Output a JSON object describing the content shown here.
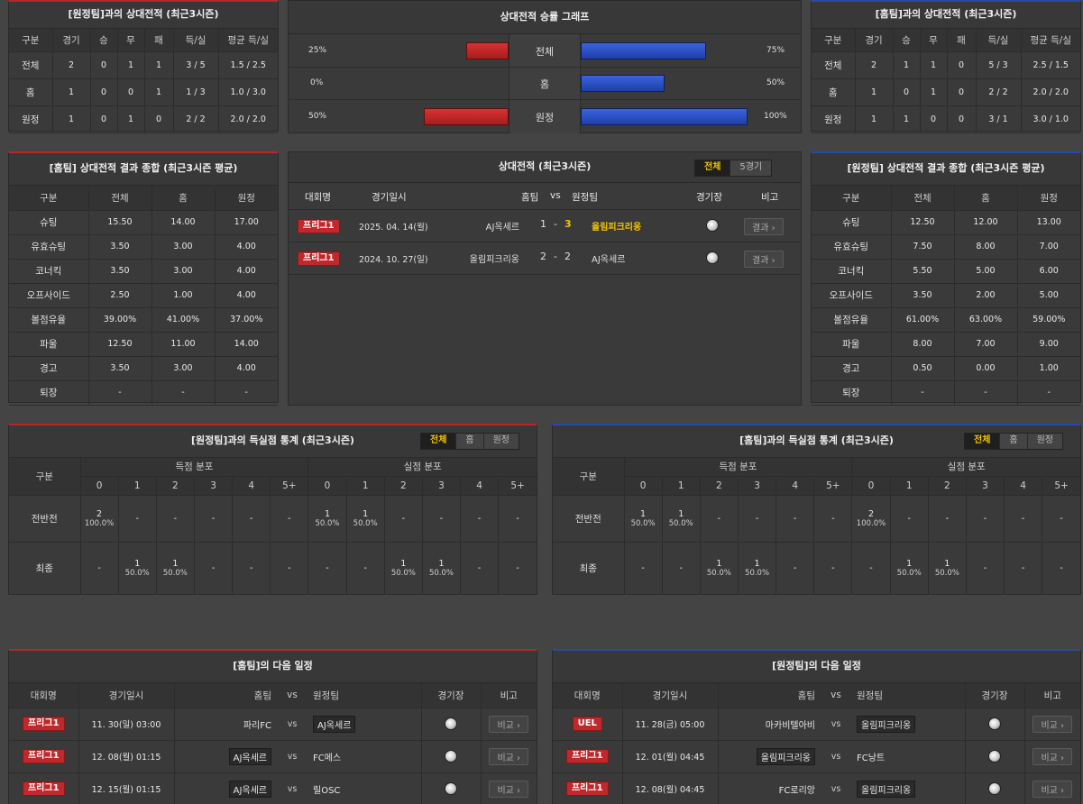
{
  "h2h_home": {
    "title": "[원정팀]과의 상대전적 (최근3시즌)",
    "headers": [
      "구분",
      "경기",
      "승",
      "무",
      "패",
      "득/실",
      "평균 득/실"
    ],
    "rows": [
      [
        "전체",
        "2",
        "0",
        "1",
        "1",
        "3 / 5",
        "1.5 / 2.5"
      ],
      [
        "홈",
        "1",
        "0",
        "0",
        "1",
        "1 / 3",
        "1.0 / 3.0"
      ],
      [
        "원정",
        "1",
        "0",
        "1",
        "0",
        "2 / 2",
        "2.0 / 2.0"
      ]
    ]
  },
  "graph": {
    "title": "상대전적 승률 그래프",
    "rows": [
      {
        "label": "전체",
        "left_text": "25%",
        "left": 25,
        "right_text": "75%",
        "right": 75
      },
      {
        "label": "홈",
        "left_text": "0%",
        "left": 0,
        "right_text": "50%",
        "right": 50
      },
      {
        "label": "원정",
        "left_text": "50%",
        "left": 50,
        "right_text": "100%",
        "right": 100
      }
    ]
  },
  "h2h_away": {
    "title": "[홈팀]과의 상대전적 (최근3시즌)",
    "headers": [
      "구분",
      "경기",
      "승",
      "무",
      "패",
      "득/실",
      "평균 득/실"
    ],
    "rows": [
      [
        "전체",
        "2",
        "1",
        "1",
        "0",
        "5 / 3",
        "2.5 / 1.5"
      ],
      [
        "홈",
        "1",
        "0",
        "1",
        "0",
        "2 / 2",
        "2.0 / 2.0"
      ],
      [
        "원정",
        "1",
        "1",
        "0",
        "0",
        "3 / 1",
        "3.0 / 1.0"
      ]
    ]
  },
  "stats_home": {
    "title": "[홈팀] 상대전적 결과 종합 (최근3시즌 평균)",
    "headers": [
      "구분",
      "전체",
      "홈",
      "원정"
    ],
    "rows": [
      [
        "슈팅",
        "15.50",
        "14.00",
        "17.00"
      ],
      [
        "유효슈팅",
        "3.50",
        "3.00",
        "4.00"
      ],
      [
        "코너킥",
        "3.50",
        "3.00",
        "4.00"
      ],
      [
        "오프사이드",
        "2.50",
        "1.00",
        "4.00"
      ],
      [
        "볼점유율",
        "39.00%",
        "41.00%",
        "37.00%"
      ],
      [
        "파울",
        "12.50",
        "11.00",
        "14.00"
      ],
      [
        "경고",
        "3.50",
        "3.00",
        "4.00"
      ],
      [
        "퇴장",
        "-",
        "-",
        "-"
      ]
    ]
  },
  "matches": {
    "title": "상대전적 (최근3시즌)",
    "tabs": [
      "전체",
      "5경기"
    ],
    "headers": {
      "league": "대회명",
      "date": "경기일시",
      "home": "홈팀",
      "vs": "vs",
      "away": "원정팀",
      "venue": "경기장",
      "note": "비고"
    },
    "rows": [
      {
        "league": "프리그1",
        "date": "2025. 04. 14(월)",
        "home": "AJ옥세르",
        "hs": "1",
        "dash": "-",
        "as": "3",
        "away": "올림피크리옹",
        "btn": "결과"
      },
      {
        "league": "프리그1",
        "date": "2024. 10. 27(일)",
        "home": "올림피크리옹",
        "hs": "2",
        "dash": "-",
        "as": "2",
        "away": "AJ옥세르",
        "btn": "결과"
      }
    ]
  },
  "stats_away": {
    "title": "[원정팀] 상대전적 결과 종합 (최근3시즌 평균)",
    "headers": [
      "구분",
      "전체",
      "홈",
      "원정"
    ],
    "rows": [
      [
        "슈팅",
        "12.50",
        "12.00",
        "13.00"
      ],
      [
        "유효슈팅",
        "7.50",
        "8.00",
        "7.00"
      ],
      [
        "코너킥",
        "5.50",
        "5.00",
        "6.00"
      ],
      [
        "오프사이드",
        "3.50",
        "2.00",
        "5.00"
      ],
      [
        "볼점유율",
        "61.00%",
        "63.00%",
        "59.00%"
      ],
      [
        "파울",
        "8.00",
        "7.00",
        "9.00"
      ],
      [
        "경고",
        "0.50",
        "0.00",
        "1.00"
      ],
      [
        "퇴장",
        "-",
        "-",
        "-"
      ]
    ]
  },
  "goals_home": {
    "title": "[원정팀]과의 득실점 통계 (최근3시즌)",
    "tabs": [
      "전체",
      "홈",
      "원정"
    ],
    "col_label": "구분",
    "scored_label": "득점 분포",
    "conceded_label": "실점 분포",
    "goal_cols": [
      "0",
      "1",
      "2",
      "3",
      "4",
      "5+"
    ],
    "rows": [
      {
        "label": "전반전",
        "cells": [
          [
            "2",
            "100.0%"
          ],
          [
            "-",
            ""
          ],
          [
            "-",
            ""
          ],
          [
            "-",
            ""
          ],
          [
            "-",
            ""
          ],
          [
            "-",
            ""
          ],
          [
            "1",
            "50.0%"
          ],
          [
            "1",
            "50.0%"
          ],
          [
            "-",
            ""
          ],
          [
            "-",
            ""
          ],
          [
            "-",
            ""
          ],
          [
            "-",
            ""
          ]
        ]
      },
      {
        "label": "최종",
        "cells": [
          [
            "-",
            ""
          ],
          [
            "1",
            "50.0%"
          ],
          [
            "1",
            "50.0%"
          ],
          [
            "-",
            ""
          ],
          [
            "-",
            ""
          ],
          [
            "-",
            ""
          ],
          [
            "-",
            ""
          ],
          [
            "-",
            ""
          ],
          [
            "1",
            "50.0%"
          ],
          [
            "1",
            "50.0%"
          ],
          [
            "-",
            ""
          ],
          [
            "-",
            ""
          ]
        ]
      }
    ]
  },
  "goals_away": {
    "title": "[홈팀]과의 득실점 통계 (최근3시즌)",
    "tabs": [
      "전체",
      "홈",
      "원정"
    ],
    "col_label": "구분",
    "scored_label": "득점 분포",
    "conceded_label": "실점 분포",
    "goal_cols": [
      "0",
      "1",
      "2",
      "3",
      "4",
      "5+"
    ],
    "rows": [
      {
        "label": "전반전",
        "cells": [
          [
            "1",
            "50.0%"
          ],
          [
            "1",
            "50.0%"
          ],
          [
            "-",
            ""
          ],
          [
            "-",
            ""
          ],
          [
            "-",
            ""
          ],
          [
            "-",
            ""
          ],
          [
            "2",
            "100.0%"
          ],
          [
            "-",
            ""
          ],
          [
            "-",
            ""
          ],
          [
            "-",
            ""
          ],
          [
            "-",
            ""
          ],
          [
            "-",
            ""
          ]
        ]
      },
      {
        "label": "최종",
        "cells": [
          [
            "-",
            ""
          ],
          [
            "-",
            ""
          ],
          [
            "1",
            "50.0%"
          ],
          [
            "1",
            "50.0%"
          ],
          [
            "-",
            ""
          ],
          [
            "-",
            ""
          ],
          [
            "-",
            ""
          ],
          [
            "1",
            "50.0%"
          ],
          [
            "1",
            "50.0%"
          ],
          [
            "-",
            ""
          ],
          [
            "-",
            ""
          ],
          [
            "-",
            ""
          ]
        ]
      }
    ]
  },
  "next_home": {
    "title": "[홈팀]의 다음 일정",
    "headers": {
      "league": "대회명",
      "date": "경기일시",
      "home": "홈팀",
      "vs": "vs",
      "away": "원정팀",
      "venue": "경기장",
      "note": "비고"
    },
    "rows": [
      {
        "league": "프리그1",
        "date": "11. 30(일) 03:00",
        "home": "파리FC",
        "vs": "vs",
        "away": "AJ옥세르",
        "btn": "비교",
        "hl": "away"
      },
      {
        "league": "프리그1",
        "date": "12. 08(월) 01:15",
        "home": "AJ옥세르",
        "vs": "vs",
        "away": "FC메스",
        "btn": "비교",
        "hl": "home"
      },
      {
        "league": "프리그1",
        "date": "12. 15(월) 01:15",
        "home": "AJ옥세르",
        "vs": "vs",
        "away": "릴OSC",
        "btn": "비교",
        "hl": "home"
      }
    ]
  },
  "next_away": {
    "title": "[원정팀]의 다음 일정",
    "headers": {
      "league": "대회명",
      "date": "경기일시",
      "home": "홈팀",
      "vs": "vs",
      "away": "원정팀",
      "venue": "경기장",
      "note": "비고"
    },
    "rows": [
      {
        "league": "UEL",
        "date": "11. 28(금) 05:00",
        "home": "마카비텔아비",
        "vs": "vs",
        "away": "올림피크리옹",
        "btn": "비교",
        "hl": "away"
      },
      {
        "league": "프리그1",
        "date": "12. 01(월) 04:45",
        "home": "올림피크리옹",
        "vs": "vs",
        "away": "FC낭트",
        "btn": "비교",
        "hl": "home"
      },
      {
        "league": "프리그1",
        "date": "12. 08(월) 04:45",
        "home": "FC로리앙",
        "vs": "vs",
        "away": "올림피크리옹",
        "btn": "비교",
        "hl": "away"
      }
    ]
  }
}
